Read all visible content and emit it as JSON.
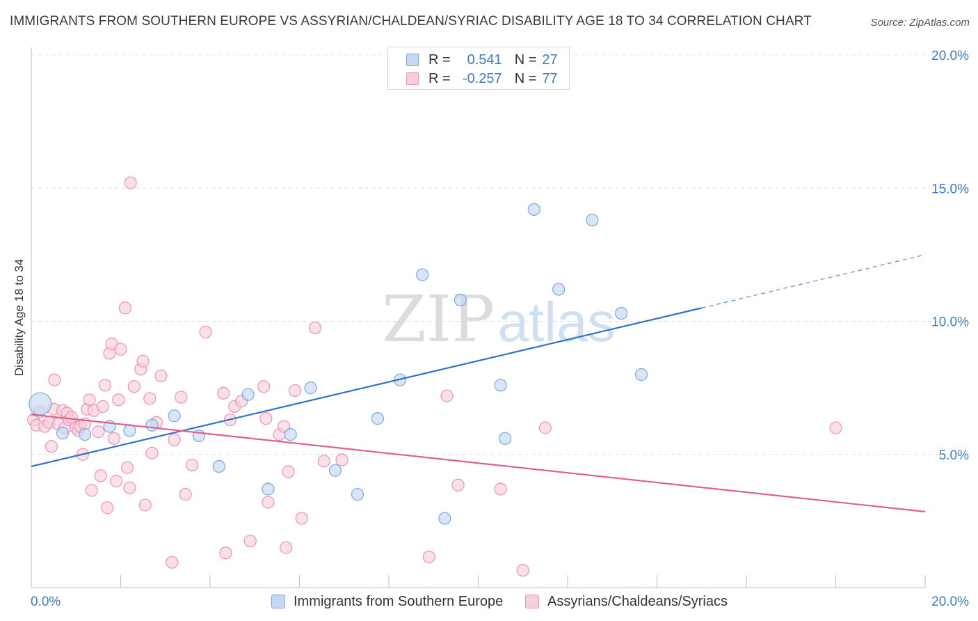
{
  "chart_data": {
    "type": "scatter",
    "title": "IMMIGRANTS FROM SOUTHERN EUROPE VS ASSYRIAN/CHALDEAN/SYRIAC DISABILITY AGE 18 TO 34 CORRELATION CHART",
    "source": "Source: ZipAtlas.com",
    "xlabel": "",
    "ylabel": "Disability Age 18 to 34",
    "xlim": [
      0,
      20
    ],
    "ylim": [
      0,
      20
    ],
    "x_ticks": [
      {
        "value": 0,
        "label": "0.0%"
      },
      {
        "value": 20,
        "label": "20.0%"
      }
    ],
    "y_ticks": [
      {
        "value": 5,
        "label": "5.0%"
      },
      {
        "value": 10,
        "label": "10.0%"
      },
      {
        "value": 15,
        "label": "15.0%"
      },
      {
        "value": 20,
        "label": "20.0%"
      }
    ],
    "watermark": {
      "zip": "ZIP",
      "atlas": "atlas"
    },
    "legend": {
      "r_label": "R =",
      "n_label": "N =",
      "entries": [
        {
          "r": "0.541",
          "n": "27"
        },
        {
          "r": "-0.257",
          "n": "77"
        }
      ]
    },
    "series": [
      {
        "name": "Immigrants from Southern Europe",
        "color": "#7aa7e0",
        "fill": "#c5d9f3",
        "line_color": "#2f72c9",
        "trend": {
          "x0": 0,
          "y0": 4.55,
          "x1": 15.0,
          "y1": 10.5,
          "dash_to_x": 20,
          "dash_to_y": 12.5
        },
        "points": [
          {
            "x": 0.2,
            "y": 6.9,
            "big": true
          },
          {
            "x": 0.7,
            "y": 5.8
          },
          {
            "x": 1.2,
            "y": 5.75
          },
          {
            "x": 1.75,
            "y": 6.05
          },
          {
            "x": 2.2,
            "y": 5.9
          },
          {
            "x": 2.7,
            "y": 6.1
          },
          {
            "x": 3.2,
            "y": 6.45
          },
          {
            "x": 3.75,
            "y": 5.7
          },
          {
            "x": 4.2,
            "y": 4.55
          },
          {
            "x": 4.85,
            "y": 7.25
          },
          {
            "x": 5.3,
            "y": 3.7
          },
          {
            "x": 5.8,
            "y": 5.75
          },
          {
            "x": 6.25,
            "y": 7.5
          },
          {
            "x": 6.8,
            "y": 4.4
          },
          {
            "x": 7.3,
            "y": 3.5
          },
          {
            "x": 7.75,
            "y": 6.35
          },
          {
            "x": 8.25,
            "y": 7.8
          },
          {
            "x": 8.75,
            "y": 11.75
          },
          {
            "x": 9.25,
            "y": 2.6
          },
          {
            "x": 9.6,
            "y": 10.8
          },
          {
            "x": 10.5,
            "y": 7.6
          },
          {
            "x": 10.6,
            "y": 5.6
          },
          {
            "x": 11.25,
            "y": 14.2
          },
          {
            "x": 11.8,
            "y": 11.2
          },
          {
            "x": 12.55,
            "y": 13.8
          },
          {
            "x": 13.2,
            "y": 10.3
          },
          {
            "x": 13.65,
            "y": 8.0
          }
        ]
      },
      {
        "name": "Assyrians/Chaldeans/Syriacs",
        "color": "#ee93b1",
        "fill": "#f7cfdc",
        "line_color": "#e0608c",
        "trend": {
          "x0": 0,
          "y0": 6.5,
          "x1": 20,
          "y1": 2.85
        },
        "points": [
          {
            "x": 0.05,
            "y": 6.3
          },
          {
            "x": 0.12,
            "y": 6.1
          },
          {
            "x": 0.18,
            "y": 6.6
          },
          {
            "x": 0.3,
            "y": 6.05
          },
          {
            "x": 0.4,
            "y": 6.2
          },
          {
            "x": 0.45,
            "y": 5.3
          },
          {
            "x": 0.5,
            "y": 6.7
          },
          {
            "x": 0.52,
            "y": 7.8
          },
          {
            "x": 0.6,
            "y": 6.15
          },
          {
            "x": 0.7,
            "y": 6.65
          },
          {
            "x": 0.75,
            "y": 6.0
          },
          {
            "x": 0.8,
            "y": 6.55
          },
          {
            "x": 0.85,
            "y": 6.3
          },
          {
            "x": 0.9,
            "y": 6.4
          },
          {
            "x": 1.0,
            "y": 6.0
          },
          {
            "x": 1.05,
            "y": 5.9
          },
          {
            "x": 1.1,
            "y": 6.05
          },
          {
            "x": 1.15,
            "y": 5.0
          },
          {
            "x": 1.2,
            "y": 6.15
          },
          {
            "x": 1.25,
            "y": 6.7
          },
          {
            "x": 1.3,
            "y": 7.05
          },
          {
            "x": 1.35,
            "y": 3.65
          },
          {
            "x": 1.4,
            "y": 6.65
          },
          {
            "x": 1.5,
            "y": 5.85
          },
          {
            "x": 1.55,
            "y": 4.2
          },
          {
            "x": 1.6,
            "y": 6.8
          },
          {
            "x": 1.65,
            "y": 7.6
          },
          {
            "x": 1.7,
            "y": 3.0
          },
          {
            "x": 1.75,
            "y": 8.8
          },
          {
            "x": 1.8,
            "y": 9.15
          },
          {
            "x": 1.85,
            "y": 5.6
          },
          {
            "x": 1.9,
            "y": 4.0
          },
          {
            "x": 1.95,
            "y": 7.05
          },
          {
            "x": 2.0,
            "y": 8.95
          },
          {
            "x": 2.1,
            "y": 10.5
          },
          {
            "x": 2.15,
            "y": 4.5
          },
          {
            "x": 2.2,
            "y": 3.75
          },
          {
            "x": 2.22,
            "y": 15.2
          },
          {
            "x": 2.3,
            "y": 7.55
          },
          {
            "x": 2.45,
            "y": 8.2
          },
          {
            "x": 2.5,
            "y": 8.5
          },
          {
            "x": 2.55,
            "y": 3.1
          },
          {
            "x": 2.65,
            "y": 7.1
          },
          {
            "x": 2.7,
            "y": 5.05
          },
          {
            "x": 2.8,
            "y": 6.2
          },
          {
            "x": 2.9,
            "y": 7.95
          },
          {
            "x": 3.15,
            "y": 0.95
          },
          {
            "x": 3.2,
            "y": 5.55
          },
          {
            "x": 3.35,
            "y": 7.15
          },
          {
            "x": 3.45,
            "y": 3.5
          },
          {
            "x": 3.6,
            "y": 4.6
          },
          {
            "x": 3.9,
            "y": 9.6
          },
          {
            "x": 4.3,
            "y": 7.3
          },
          {
            "x": 4.35,
            "y": 1.3
          },
          {
            "x": 4.45,
            "y": 6.3
          },
          {
            "x": 4.55,
            "y": 6.8
          },
          {
            "x": 4.7,
            "y": 7.0
          },
          {
            "x": 4.9,
            "y": 1.75
          },
          {
            "x": 5.2,
            "y": 7.55
          },
          {
            "x": 5.25,
            "y": 6.35
          },
          {
            "x": 5.3,
            "y": 3.2
          },
          {
            "x": 5.55,
            "y": 5.75
          },
          {
            "x": 5.65,
            "y": 6.05
          },
          {
            "x": 5.7,
            "y": 1.5
          },
          {
            "x": 5.75,
            "y": 4.35
          },
          {
            "x": 5.9,
            "y": 7.4
          },
          {
            "x": 6.05,
            "y": 2.6
          },
          {
            "x": 6.35,
            "y": 9.75
          },
          {
            "x": 6.55,
            "y": 4.75
          },
          {
            "x": 6.95,
            "y": 4.8
          },
          {
            "x": 8.9,
            "y": 1.15
          },
          {
            "x": 9.3,
            "y": 7.2
          },
          {
            "x": 9.55,
            "y": 3.85
          },
          {
            "x": 10.5,
            "y": 3.7
          },
          {
            "x": 11.0,
            "y": 0.65
          },
          {
            "x": 11.5,
            "y": 6.0
          },
          {
            "x": 18.0,
            "y": 6.0
          }
        ]
      }
    ]
  }
}
